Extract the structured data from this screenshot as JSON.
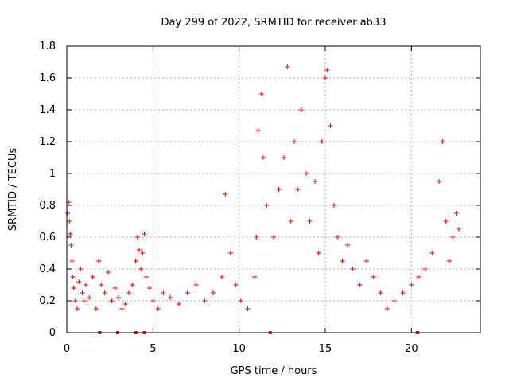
{
  "chart_data": {
    "type": "scatter",
    "title": "Day 299 of 2022, SRMTID for receiver ab33",
    "xlabel": "GPS time / hours",
    "ylabel": "SRMTID / TECUs",
    "xlim": [
      0,
      24
    ],
    "ylim": [
      0,
      1.8
    ],
    "xticks": [
      0,
      5,
      10,
      15,
      20
    ],
    "yticks": [
      0,
      0.2,
      0.4,
      0.6,
      0.8,
      1,
      1.2,
      1.4,
      1.6,
      1.8
    ],
    "ytick_labels": [
      "0",
      "0.2",
      "0.4",
      "0.6",
      "0.8",
      "1",
      "1.2",
      "1.4",
      "1.6",
      "1.8"
    ],
    "grid": true,
    "marker": "+",
    "color": "#ff0000",
    "zero_markers_x": [
      1.9,
      2.95,
      4.0,
      4.5,
      11.8,
      20.35
    ],
    "series": [
      {
        "name": "SRMTID",
        "points": [
          [
            0.05,
            0.75
          ],
          [
            0.1,
            0.82
          ],
          [
            0.15,
            0.7
          ],
          [
            0.2,
            0.62
          ],
          [
            0.25,
            0.55
          ],
          [
            0.3,
            0.45
          ],
          [
            0.35,
            0.35
          ],
          [
            0.4,
            0.28
          ],
          [
            0.5,
            0.2
          ],
          [
            0.6,
            0.15
          ],
          [
            0.7,
            0.32
          ],
          [
            0.8,
            0.4
          ],
          [
            0.9,
            0.25
          ],
          [
            1.0,
            0.2
          ],
          [
            1.1,
            0.3
          ],
          [
            1.3,
            0.22
          ],
          [
            1.5,
            0.35
          ],
          [
            1.7,
            0.15
          ],
          [
            1.85,
            0.45
          ],
          [
            2.0,
            0.3
          ],
          [
            2.2,
            0.25
          ],
          [
            2.4,
            0.38
          ],
          [
            2.6,
            0.2
          ],
          [
            2.8,
            0.28
          ],
          [
            3.0,
            0.22
          ],
          [
            3.2,
            0.15
          ],
          [
            3.4,
            0.18
          ],
          [
            3.6,
            0.25
          ],
          [
            3.8,
            0.3
          ],
          [
            4.0,
            0.45
          ],
          [
            4.1,
            0.6
          ],
          [
            4.2,
            0.52
          ],
          [
            4.3,
            0.4
          ],
          [
            4.4,
            0.5
          ],
          [
            4.5,
            0.62
          ],
          [
            4.6,
            0.35
          ],
          [
            4.8,
            0.28
          ],
          [
            5.0,
            0.2
          ],
          [
            5.3,
            0.15
          ],
          [
            5.6,
            0.25
          ],
          [
            6.0,
            0.22
          ],
          [
            6.5,
            0.18
          ],
          [
            7.0,
            0.25
          ],
          [
            7.5,
            0.3
          ],
          [
            8.0,
            0.2
          ],
          [
            8.5,
            0.25
          ],
          [
            9.0,
            0.35
          ],
          [
            9.2,
            0.87
          ],
          [
            9.5,
            0.5
          ],
          [
            9.8,
            0.3
          ],
          [
            10.1,
            0.2
          ],
          [
            10.5,
            0.15
          ],
          [
            10.9,
            0.35
          ],
          [
            11.0,
            0.6
          ],
          [
            11.1,
            1.27
          ],
          [
            11.3,
            1.5
          ],
          [
            11.4,
            1.1
          ],
          [
            11.6,
            0.8
          ],
          [
            12.0,
            0.6
          ],
          [
            12.3,
            0.9
          ],
          [
            12.6,
            1.1
          ],
          [
            12.8,
            1.67
          ],
          [
            13.0,
            0.7
          ],
          [
            13.2,
            1.2
          ],
          [
            13.4,
            0.9
          ],
          [
            13.6,
            1.4
          ],
          [
            13.9,
            1.0
          ],
          [
            14.1,
            0.7
          ],
          [
            14.4,
            0.95
          ],
          [
            14.6,
            0.5
          ],
          [
            14.8,
            1.2
          ],
          [
            15.0,
            1.6
          ],
          [
            15.1,
            1.65
          ],
          [
            15.3,
            1.3
          ],
          [
            15.5,
            0.8
          ],
          [
            15.7,
            0.6
          ],
          [
            16.0,
            0.45
          ],
          [
            16.3,
            0.55
          ],
          [
            16.6,
            0.4
          ],
          [
            17.0,
            0.3
          ],
          [
            17.4,
            0.45
          ],
          [
            17.8,
            0.35
          ],
          [
            18.2,
            0.25
          ],
          [
            18.6,
            0.15
          ],
          [
            19.0,
            0.2
          ],
          [
            19.5,
            0.25
          ],
          [
            20.0,
            0.3
          ],
          [
            20.4,
            0.35
          ],
          [
            20.8,
            0.4
          ],
          [
            21.2,
            0.5
          ],
          [
            21.6,
            0.95
          ],
          [
            21.8,
            1.2
          ],
          [
            22.0,
            0.7
          ],
          [
            22.2,
            0.45
          ],
          [
            22.4,
            0.6
          ],
          [
            22.6,
            0.75
          ],
          [
            22.75,
            0.65
          ]
        ]
      }
    ]
  }
}
